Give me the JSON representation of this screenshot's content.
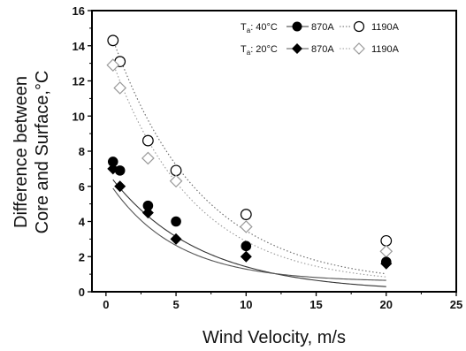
{
  "chart_data": {
    "type": "scatter",
    "xlabel": "Wind Velocity, m/s",
    "ylabel": [
      "Difference between",
      "Core and Surface,°C"
    ],
    "xlim": [
      -1,
      25
    ],
    "ylim": [
      0,
      16
    ],
    "xticks": [
      0,
      5,
      10,
      15,
      20,
      25
    ],
    "yticks": [
      0,
      2,
      4,
      6,
      8,
      10,
      12,
      14,
      16
    ],
    "grid": false,
    "legend_position": "top-right",
    "legend_groups": [
      {
        "label_main": "T",
        "label_sub": "a",
        "label_value": ": 40°C"
      },
      {
        "label_main": "T",
        "label_sub": "a",
        "label_value": ": 20°C"
      }
    ],
    "series": [
      {
        "name": "870A",
        "group": 0,
        "marker": "filled-circle",
        "color": "#000000",
        "x": [
          0.5,
          1,
          3,
          5,
          10,
          20
        ],
        "y": [
          7.4,
          6.9,
          4.9,
          4.0,
          2.6,
          1.7
        ]
      },
      {
        "name": "1190A",
        "group": 0,
        "marker": "open-circle",
        "color": "#000000",
        "x": [
          0.5,
          1,
          3,
          5,
          10,
          20
        ],
        "y": [
          14.3,
          13.1,
          8.6,
          6.9,
          4.4,
          2.9
        ]
      },
      {
        "name": "870A",
        "group": 1,
        "marker": "filled-diamond",
        "color": "#000000",
        "x": [
          0.5,
          1,
          3,
          5,
          10,
          20
        ],
        "y": [
          7.0,
          6.0,
          4.5,
          3.0,
          2.0,
          1.6
        ]
      },
      {
        "name": "1190A",
        "group": 1,
        "marker": "open-diamond",
        "color": "#999999",
        "x": [
          0.5,
          1,
          3,
          5,
          10,
          20
        ],
        "y": [
          12.9,
          11.6,
          7.6,
          6.3,
          3.7,
          2.3
        ]
      }
    ],
    "fit_curves": [
      {
        "series": 0,
        "style": "solid",
        "color": "#333333",
        "a": 6.9,
        "b": -0.0018,
        "c": 0.1575
      },
      {
        "series": 1,
        "style": "dotted",
        "color": "#666666",
        "a": 15.12,
        "b": 0.3945,
        "c": 0.1592
      },
      {
        "series": 2,
        "style": "solid",
        "color": "#555555",
        "a": 5.92,
        "b": 0.56,
        "c": 0.2096
      },
      {
        "series": 3,
        "style": "dotted",
        "color": "#999999",
        "a": 13.75,
        "b": 0.4,
        "c": 0.1715
      }
    ]
  }
}
